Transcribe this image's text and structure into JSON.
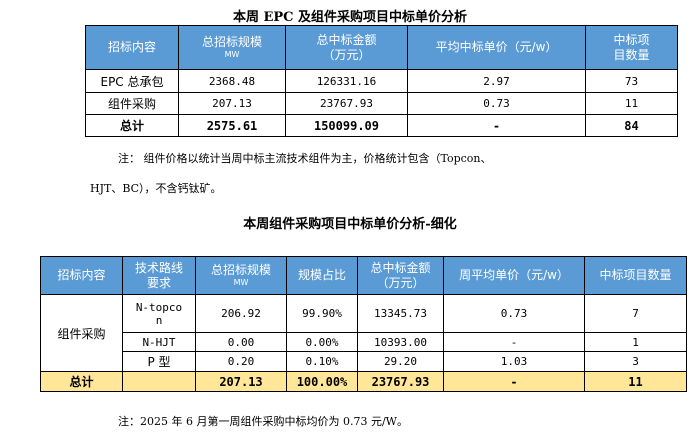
{
  "table1": {
    "title": "本周 EPC 及组件采购项目中标单价分析",
    "headers": {
      "c1": "招标内容",
      "c2": "总招标规模",
      "c2_unit": "MW",
      "c3a": "总中标金额",
      "c3b": "（万元）",
      "c4": "平均中标单价（元/w）",
      "c5a": "中标项",
      "c5b": "目数量"
    },
    "rows": [
      {
        "name": "EPC 总承包",
        "scale": "2368.48",
        "amount": "126331.16",
        "price": "2.97",
        "count": "73"
      },
      {
        "name": "组件采购",
        "scale": "207.13",
        "amount": "23767.93",
        "price": "0.73",
        "count": "11"
      },
      {
        "name": "总计",
        "scale": "2575.61",
        "amount": "150099.09",
        "price": "-",
        "count": "84"
      }
    ]
  },
  "note1": {
    "line1": "注：  组件价格以统计当周中标主流技术组件为主，价格统计包含（Topcon、",
    "line2": "HJT、BC），不含钙钛矿。"
  },
  "table2": {
    "title": "本周组件采购项目中标单价分析-细化",
    "headers": {
      "c1": "招标内容",
      "c2a": "技术路线",
      "c2b": "要求",
      "c3": "总招标规模",
      "c3_unit": "MW",
      "c4": "规模占比",
      "c5a": "总中标金额",
      "c5b": "（万元）",
      "c6": "周平均单价（元/w）",
      "c7": "中标项目数量"
    },
    "group_label": "组件采购",
    "rows": [
      {
        "tech_a": "N-topco",
        "tech_b": "n",
        "scale": "206.92",
        "ratio": "99.90%",
        "amount": "13345.73",
        "price": "0.73",
        "count": "7"
      },
      {
        "tech": "N-HJT",
        "scale": "0.00",
        "ratio": "0.00%",
        "amount": "10393.00",
        "price": "-",
        "count": "1"
      },
      {
        "tech": "P 型",
        "scale": "0.20",
        "ratio": "0.10%",
        "amount": "29.20",
        "price": "1.03",
        "count": "3"
      }
    ],
    "total": {
      "label": "总计",
      "tech": "",
      "scale": "207.13",
      "ratio": "100.00%",
      "amount": "23767.93",
      "price": "-",
      "count": "11"
    }
  },
  "note2": "注：2025 年 6 月第一周组件采购中标均价为 0.73 元/W。",
  "colors": {
    "header_bg": "#5b9bd5",
    "total_bg": "#ffe699"
  }
}
